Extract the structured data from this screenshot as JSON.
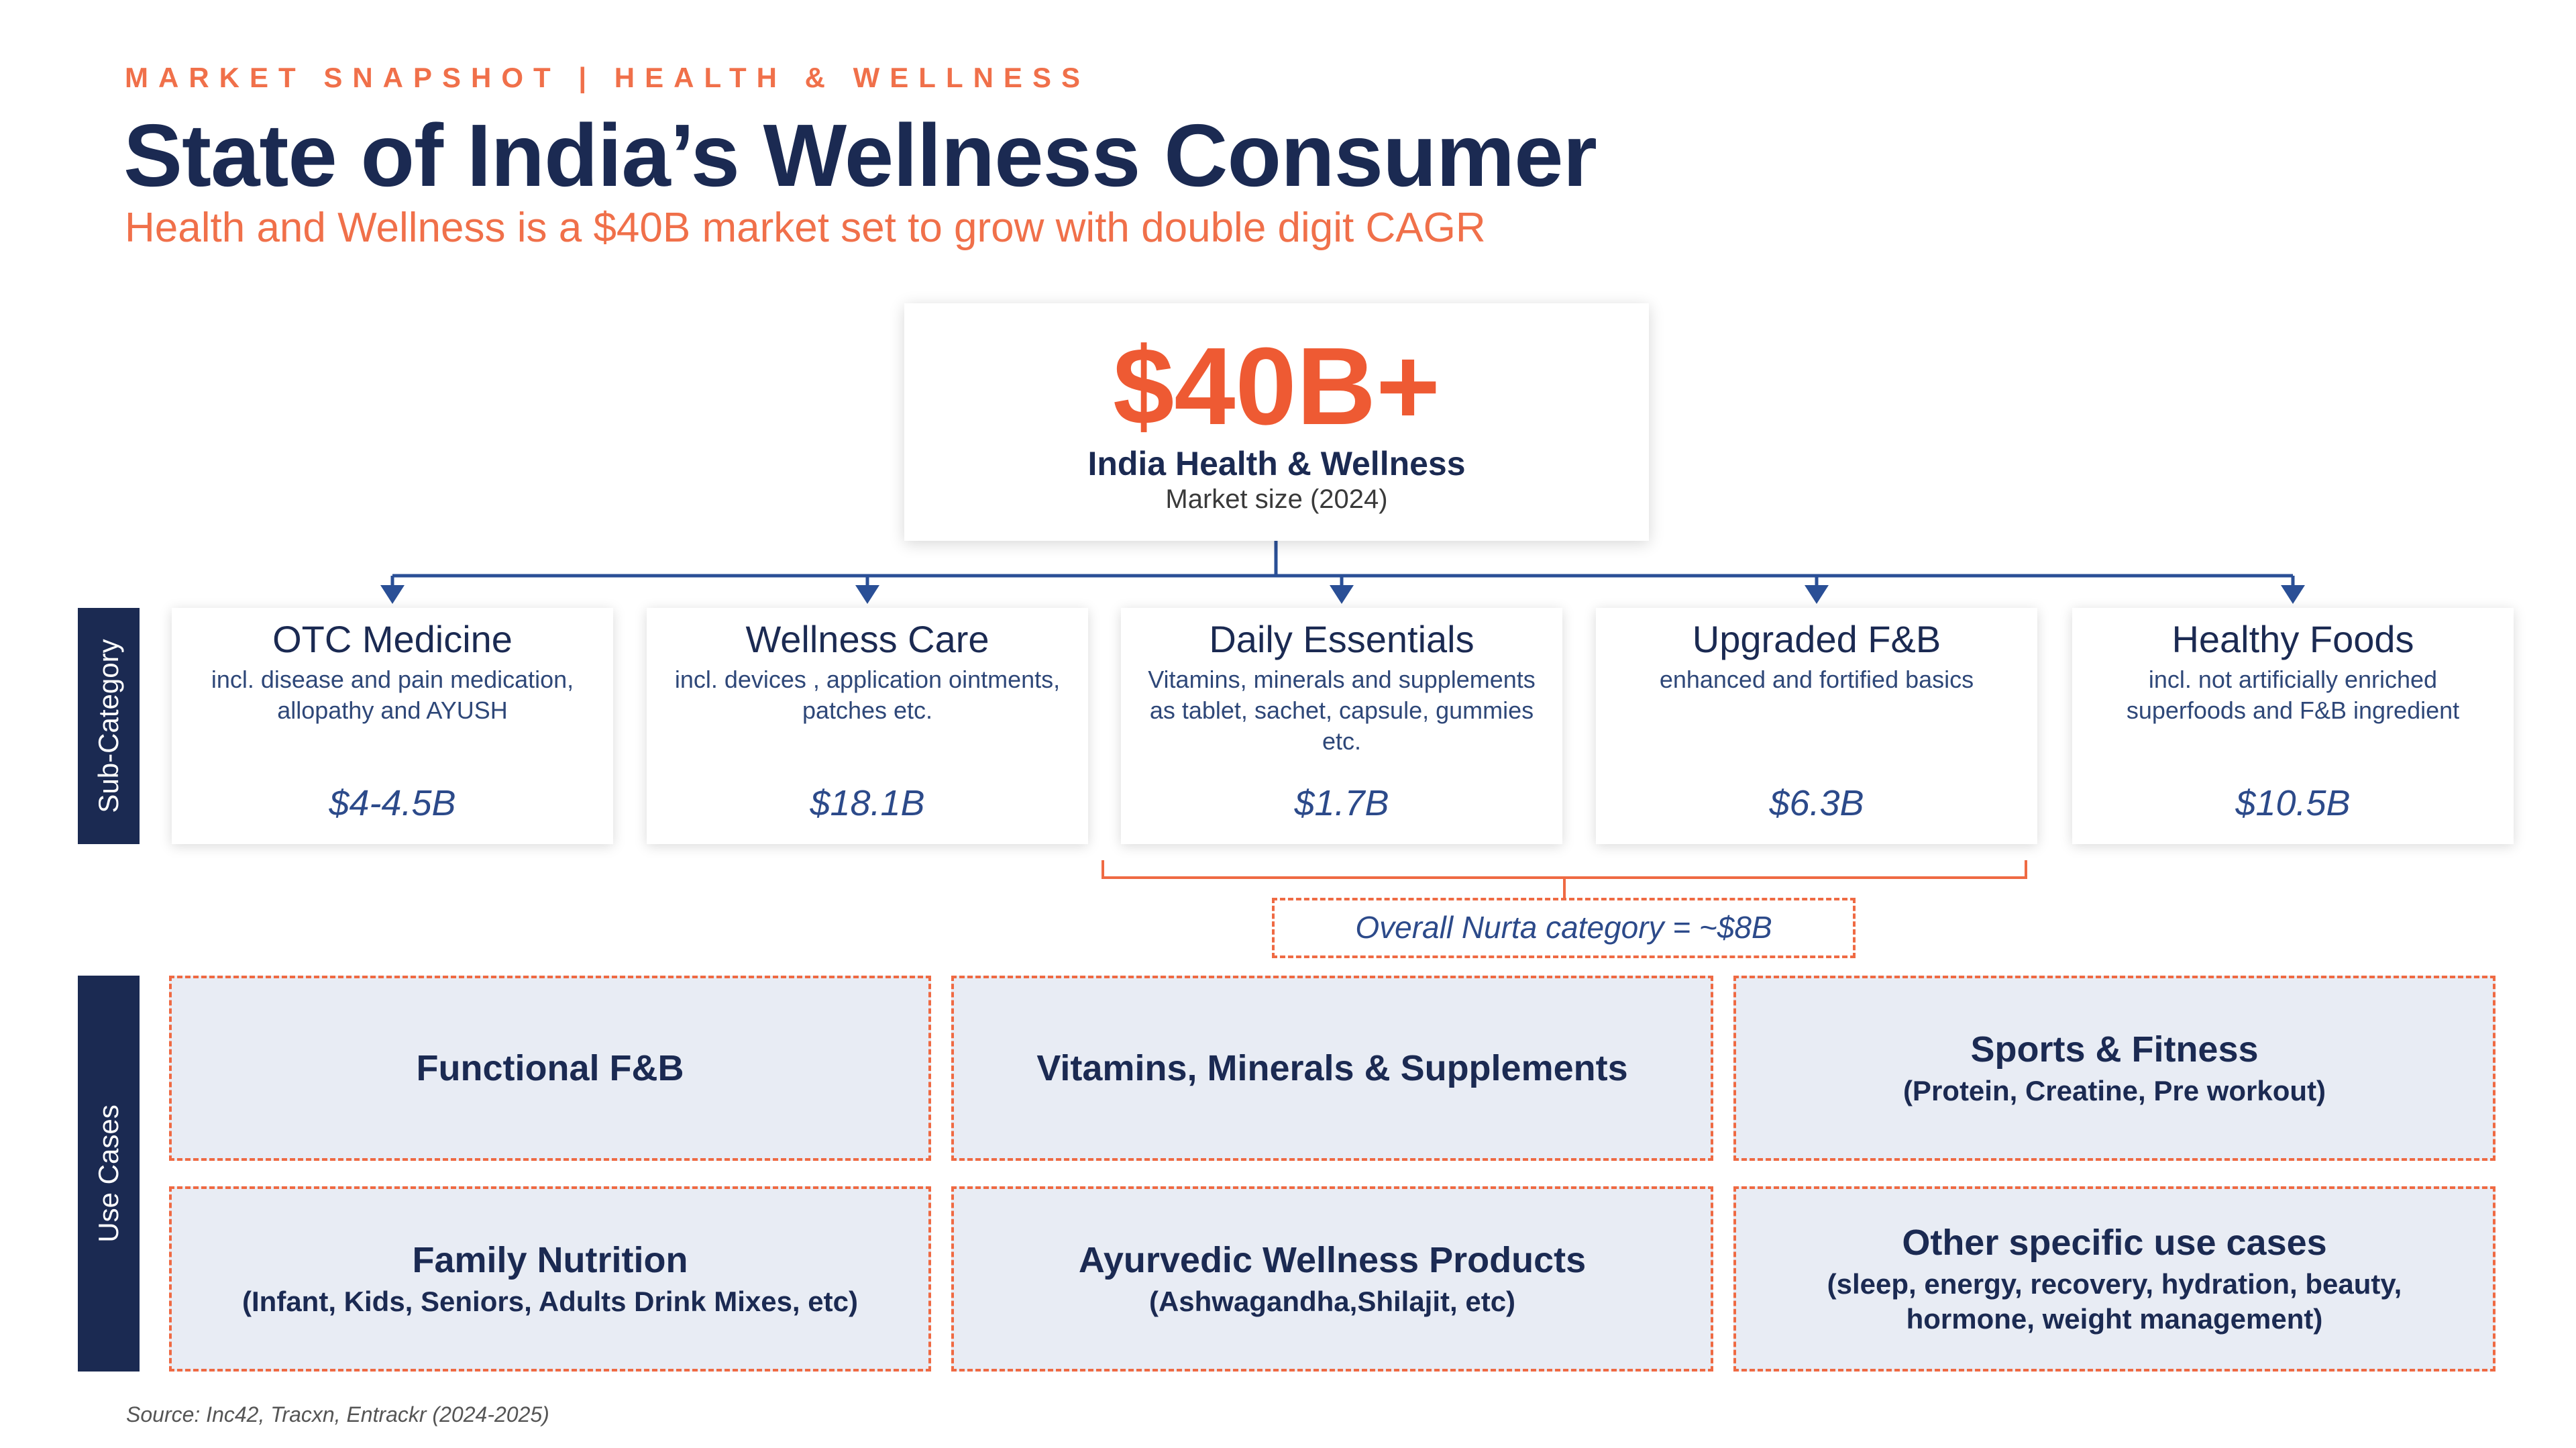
{
  "header": {
    "eyebrow": "MARKET SNAPSHOT | HEALTH & WELLNESS",
    "title": "State of India’s Wellness Consumer",
    "subtitle": "Health and Wellness is a $40B market set to grow with double digit CAGR"
  },
  "hero": {
    "value": "$40B+",
    "label": "India Health & Wellness",
    "sublabel": "Market size (2024)"
  },
  "side_labels": {
    "subcategory": "Sub-Category",
    "use_cases": "Use Cases"
  },
  "subcategories": [
    {
      "name": "OTC Medicine",
      "description": "incl. disease and pain medication, allopathy and AYUSH",
      "value": "$4-4.5B"
    },
    {
      "name": "Wellness Care",
      "description": "incl. devices , application ointments, patches etc.",
      "value": "$18.1B"
    },
    {
      "name": "Daily Essentials",
      "description": "Vitamins, minerals and supplements as tablet, sachet, capsule, gummies etc.",
      "value": "$1.7B"
    },
    {
      "name": "Upgraded F&B",
      "description": "enhanced and fortified basics",
      "value": "$6.3B"
    },
    {
      "name": "Healthy Foods",
      "description": "incl. not artificially enriched superfoods and F&B ingredient",
      "value": "$10.5B"
    }
  ],
  "nurta": {
    "text": "Overall Nurta category = ~$8B"
  },
  "use_cases": [
    {
      "title": "Functional F&B",
      "sub": ""
    },
    {
      "title": "Vitamins, Minerals & Supplements",
      "sub": ""
    },
    {
      "title": "Sports & Fitness",
      "sub": "(Protein, Creatine, Pre workout)"
    },
    {
      "title": "Family Nutrition",
      "sub": "(Infant, Kids, Seniors, Adults Drink Mixes, etc)"
    },
    {
      "title": "Ayurvedic Wellness Products",
      "sub": "(Ashwagandha,Shilajit, etc)"
    },
    {
      "title": "Other specific use cases",
      "sub": "(sleep, energy, recovery, hydration, beauty, hormone, weight management)"
    }
  ],
  "source": "Source: Inc42, Tracxn, Entrackr (2024-2025)",
  "colors": {
    "navy": "#1b2a52",
    "accent_orange": "#ee5a33",
    "value_blue": "#2c4a8a",
    "usecase_bg": "#e8ecf4",
    "connector": "#2a4f96"
  }
}
